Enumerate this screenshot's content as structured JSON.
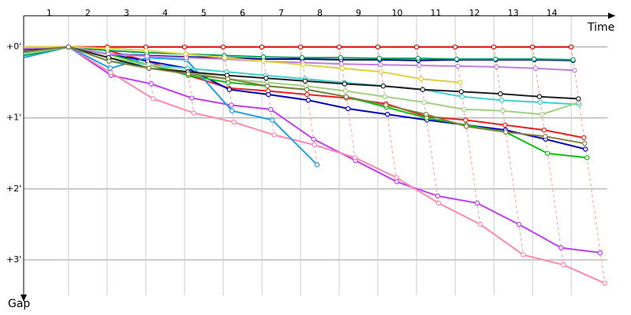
{
  "chart_data": {
    "type": "line",
    "x_label": "Time",
    "y_label": "Gap",
    "xlim": [
      -0.16,
      15.14
    ],
    "ylim": [
      -0.44,
      3.5
    ],
    "y_inverted": true,
    "grid": true,
    "xticks": [
      1,
      2,
      3,
      4,
      5,
      6,
      7,
      8,
      9,
      10,
      11,
      12,
      13,
      14
    ],
    "yticks": [
      {
        "value": 0,
        "label": "+0'"
      },
      {
        "value": 1,
        "label": "+1'"
      },
      {
        "value": 2,
        "label": "+2'"
      },
      {
        "value": 3,
        "label": "+3'"
      }
    ],
    "series": [
      {
        "color": "#e00000",
        "x": [
          -0.16,
          1,
          2,
          3,
          4,
          5,
          6,
          7,
          8,
          9,
          10,
          11,
          12,
          13,
          14
        ],
        "values": [
          0,
          0,
          0,
          0,
          0,
          0,
          0,
          0,
          0,
          0,
          0,
          0,
          0,
          0,
          0
        ]
      },
      {
        "color": "#e82020",
        "x": [
          -0.16,
          1,
          2.01,
          3.05,
          4.1,
          5.15,
          6.16,
          7.17,
          8.19,
          9.21,
          10.25,
          11.27,
          12.29,
          13.3,
          14.33
        ],
        "values": [
          0.08,
          0,
          0.05,
          0.2,
          0.4,
          0.58,
          0.62,
          0.67,
          0.72,
          0.8,
          0.98,
          1.03,
          1.1,
          1.17,
          1.28
        ]
      },
      {
        "color": "#0000c0",
        "x": [
          -0.16,
          1,
          2.03,
          3.05,
          4.08,
          5.16,
          6.17,
          7.2,
          8.23,
          9.25,
          10.27,
          11.29,
          12.3,
          13.34,
          14.37
        ],
        "values": [
          0.1,
          0,
          0.1,
          0.2,
          0.3,
          0.6,
          0.67,
          0.75,
          0.87,
          0.95,
          1.03,
          1.1,
          1.17,
          1.3,
          1.44
        ]
      },
      {
        "color": "#10c010",
        "x": [
          -0.16,
          1,
          2.03,
          3.07,
          4.1,
          5.13,
          6.14,
          7.16,
          8.18,
          9.22,
          10.26,
          11.29,
          12.31,
          13.39,
          14.41
        ],
        "values": [
          0.05,
          0,
          0.1,
          0.25,
          0.4,
          0.5,
          0.55,
          0.6,
          0.7,
          0.85,
          1.0,
          1.1,
          1.2,
          1.5,
          1.56
        ]
      },
      {
        "color": "#c040f0",
        "x": [
          -0.16,
          1,
          2.1,
          3.14,
          4.19,
          5.21,
          6.23,
          7.34,
          8.42,
          9.49,
          10.55,
          11.57,
          12.65,
          13.74,
          14.75
        ],
        "values": [
          0.05,
          0,
          0.4,
          0.52,
          0.72,
          0.82,
          0.88,
          1.3,
          1.6,
          1.9,
          2.1,
          2.2,
          2.5,
          2.83,
          2.9
        ]
      },
      {
        "color": "#ff88b0",
        "x": [
          -0.16,
          1,
          2.09,
          3.19,
          4.24,
          5.28,
          6.32,
          7.36,
          8.41,
          9.48,
          10.57,
          11.65,
          12.76,
          13.8,
          14.87
        ],
        "values": [
          0.05,
          0,
          0.36,
          0.73,
          0.93,
          1.06,
          1.24,
          1.38,
          1.56,
          1.84,
          2.2,
          2.5,
          2.93,
          3.07,
          3.33
        ]
      },
      {
        "color": "#20a0e0",
        "x": [
          -0.16,
          1,
          2.08,
          3.04,
          4.05,
          5.23,
          6.27,
          7.43
        ],
        "values": [
          0.15,
          0,
          0.3,
          0.15,
          0.18,
          0.9,
          1.03,
          1.66
        ]
      },
      {
        "color": "#000080",
        "x": [
          -0.16,
          1,
          2.03,
          3.03,
          4.04,
          5.04,
          6.04,
          7.04,
          8.05,
          9.05,
          10.05,
          11.05,
          12.05,
          13.05,
          14.05
        ],
        "values": [
          0.03,
          0,
          0.1,
          0.12,
          0.14,
          0.15,
          0.17,
          0.17,
          0.18,
          0.18,
          0.19,
          0.18,
          0.18,
          0.18,
          0.19
        ]
      },
      {
        "color": "#00a060",
        "x": [
          -0.16,
          1,
          2.01,
          3.02,
          4.03,
          5.03,
          6.04,
          7.04,
          8.04,
          9.04,
          10.04,
          11.04,
          12.04,
          13.04,
          14.05
        ],
        "values": [
          0.12,
          0,
          0.05,
          0.08,
          0.1,
          0.12,
          0.14,
          0.15,
          0.15,
          0.16,
          0.16,
          0.17,
          0.17,
          0.17,
          0.18
        ]
      },
      {
        "color": "#c080e0",
        "x": [
          -0.16,
          1,
          2.03,
          3.03,
          4.04,
          5.04,
          6.05,
          7.06,
          8.06,
          9.07,
          10.07,
          11.07,
          12.07,
          13.08,
          14.09
        ],
        "values": [
          0.02,
          0,
          0.1,
          0.13,
          0.15,
          0.17,
          0.2,
          0.22,
          0.24,
          0.25,
          0.26,
          0.27,
          0.28,
          0.3,
          0.33
        ]
      },
      {
        "color": "#e0d040",
        "x": [
          -0.16,
          1,
          2.01,
          3.01,
          4.03,
          5.04,
          6.05,
          7.07,
          8.08,
          9.09,
          10.12,
          11.13
        ],
        "values": [
          0,
          0,
          0.02,
          0.05,
          0.1,
          0.15,
          0.2,
          0.25,
          0.3,
          0.35,
          0.45,
          0.5
        ]
      },
      {
        "color": "#40d0d0",
        "x": [
          -0.16,
          1,
          2.05,
          3.07,
          4.08,
          5.09,
          6.1,
          7.12,
          8.13,
          9.14,
          10.16,
          11.18,
          12.2,
          13.2,
          14.21
        ],
        "values": [
          0.08,
          0,
          0.2,
          0.25,
          0.3,
          0.35,
          0.4,
          0.45,
          0.5,
          0.55,
          0.6,
          0.7,
          0.75,
          0.78,
          0.81
        ]
      },
      {
        "color": "#a0d080",
        "x": [
          -0.16,
          1,
          2.04,
          3.07,
          4.09,
          5.12,
          6.13,
          7.14,
          8.16,
          9.18,
          10.2,
          11.23,
          12.23,
          13.25,
          14.2
        ],
        "values": [
          0.1,
          0,
          0.15,
          0.25,
          0.35,
          0.45,
          0.5,
          0.55,
          0.62,
          0.7,
          0.78,
          0.88,
          0.9,
          0.95,
          0.78
        ]
      },
      {
        "color": "#202020",
        "x": [
          -0.16,
          1,
          2.04,
          3.08,
          4.09,
          5.1,
          6.11,
          7.12,
          8.14,
          9.14,
          10.16,
          11.16,
          12.17,
          13.18,
          14.19
        ],
        "values": [
          0.06,
          0,
          0.15,
          0.3,
          0.35,
          0.4,
          0.44,
          0.48,
          0.52,
          0.55,
          0.6,
          0.63,
          0.66,
          0.7,
          0.73
        ]
      },
      {
        "color": "#808040",
        "x": [
          -0.16,
          1,
          2.05,
          3.08,
          4.1,
          5.12,
          6.14,
          7.16,
          8.18,
          9.21,
          10.25,
          11.29,
          12.31,
          13.33,
          14.35
        ],
        "values": [
          0.07,
          0,
          0.2,
          0.3,
          0.38,
          0.45,
          0.55,
          0.6,
          0.7,
          0.82,
          0.95,
          1.12,
          1.2,
          1.26,
          1.36
        ]
      }
    ]
  }
}
